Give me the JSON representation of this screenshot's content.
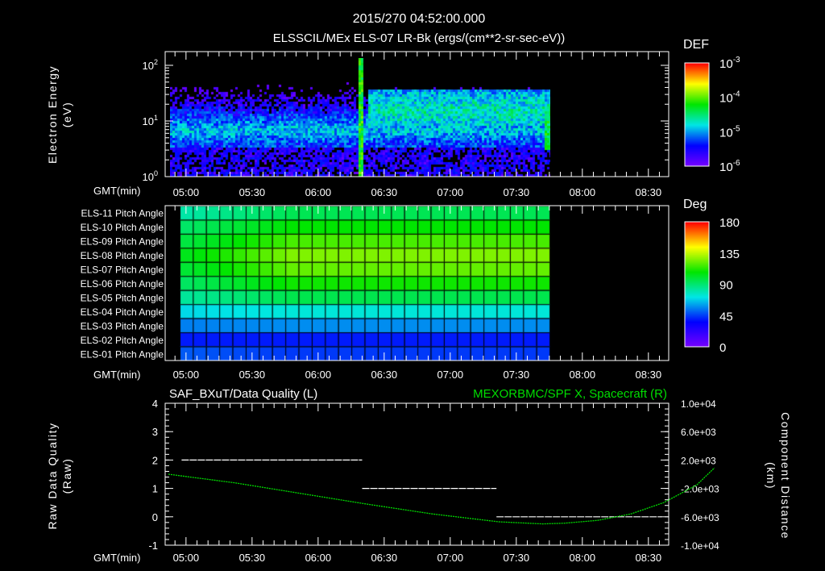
{
  "header": {
    "title": "2015/270 04:52:00.000"
  },
  "colors": {
    "background": "#000000",
    "axes": "#ffffff",
    "right_series": "#00dd00"
  },
  "chart_data": [
    {
      "type": "heatmap",
      "title": "ELSSCIL/MEx ELS-07 LR-Bk  (ergs/(cm**2-sr-sec-eV))",
      "ylabel": "Electron Energy",
      "ylabel_units": "(eV)",
      "xlabel": "GMT(min)",
      "x_ticks": [
        "05:00",
        "05:30",
        "06:00",
        "06:30",
        "07:00",
        "07:30",
        "08:00",
        "08:30"
      ],
      "y_scale": "log",
      "ylim": [
        1,
        178
      ],
      "y_ticks": [
        {
          "base": "10",
          "exp": "0",
          "value": 1
        },
        {
          "base": "10",
          "exp": "1",
          "value": 10
        },
        {
          "base": "10",
          "exp": "2",
          "value": 100
        }
      ],
      "data_time_range": [
        "04:57",
        "07:50"
      ],
      "features": [
        {
          "desc": "core band",
          "energy_eV": [
            4,
            13
          ],
          "level": "1e-5"
        },
        {
          "desc": "burst",
          "time": "06:19",
          "energy_eV": [
            3,
            150
          ],
          "level": "1e-4"
        },
        {
          "desc": "enhanced band",
          "time": [
            "06:22",
            "07:48"
          ],
          "energy_eV": [
            10,
            40
          ],
          "level": "3e-5"
        }
      ],
      "colorbar": {
        "label": "DEF",
        "scale": "log",
        "range": [
          1e-06,
          0.001
        ],
        "ticks": [
          {
            "base": "10",
            "exp": "-3"
          },
          {
            "base": "10",
            "exp": "-4"
          },
          {
            "base": "10",
            "exp": "-5"
          },
          {
            "base": "10",
            "exp": "-6"
          }
        ]
      }
    },
    {
      "type": "heatmap",
      "xlabel": "GMT(min)",
      "x_ticks": [
        "05:00",
        "05:30",
        "06:00",
        "06:30",
        "07:00",
        "07:30",
        "08:00",
        "08:30"
      ],
      "data_time_range": [
        "04:57",
        "07:51"
      ],
      "bin_minutes": 6,
      "rows": [
        {
          "label": "ELS-11 Pitch Angle",
          "start": 82,
          "end": 95
        },
        {
          "label": "ELS-10 Pitch Angle",
          "start": 92,
          "end": 108
        },
        {
          "label": "ELS-09 Pitch Angle",
          "start": 98,
          "end": 118
        },
        {
          "label": "ELS-08 Pitch Angle",
          "start": 104,
          "end": 126
        },
        {
          "label": "ELS-07 Pitch Angle",
          "start": 100,
          "end": 122
        },
        {
          "label": "ELS-06 Pitch Angle",
          "start": 93,
          "end": 110
        },
        {
          "label": "ELS-05 Pitch Angle",
          "start": 84,
          "end": 96
        },
        {
          "label": "ELS-04 Pitch Angle",
          "start": 70,
          "end": 74
        },
        {
          "label": "ELS-03 Pitch Angle",
          "start": 56,
          "end": 58
        },
        {
          "label": "ELS-02 Pitch Angle",
          "start": 40,
          "end": 40
        },
        {
          "label": "ELS-01 Pitch Angle",
          "start": 50,
          "end": 45
        }
      ],
      "colorbar": {
        "label": "Deg",
        "range": [
          0,
          180
        ],
        "ticks": [
          "180",
          "135",
          "90",
          "45",
          "0"
        ]
      }
    },
    {
      "type": "line",
      "title_left": "SAF_BXuT/Data Quality (L)",
      "title_right": "MEXORBMC/SPF X, Spacecraft (R)",
      "ylabel_left": "Raw Data Quality",
      "ylabel_left_units": "(Raw)",
      "ylabel_right": "Component Distance",
      "ylabel_right_units": "(km)",
      "xlabel": "GMT(min)",
      "x_ticks": [
        "05:00",
        "05:30",
        "06:00",
        "06:30",
        "07:00",
        "07:30",
        "08:00",
        "08:30"
      ],
      "ylim_left": [
        -1,
        4
      ],
      "y_ticks_left": [
        "4",
        "3",
        "2",
        "1",
        "0",
        "-1"
      ],
      "ylim_right": [
        -10000,
        10000
      ],
      "y_ticks_right": [
        "1.0e+04",
        "6.0e+03",
        "2.0e+03",
        "-2.0e+03",
        "-6.0e+03",
        "-1.0e+04"
      ],
      "series": [
        {
          "name": "Data Quality",
          "axis": "left",
          "color": "#ffffff",
          "style": "dashed",
          "segments": [
            {
              "from": "04:58",
              "to": "06:20",
              "value": 2
            },
            {
              "from": "06:20",
              "to": "07:21",
              "value": 1
            },
            {
              "from": "07:21",
              "to": "08:36",
              "value": 0
            }
          ]
        },
        {
          "name": "SPF X",
          "axis": "right",
          "color": "#00dd00",
          "x_min_since_0452": [
            0,
            30,
            60,
            90,
            120,
            150,
            170,
            180,
            195,
            210,
            225,
            240,
            248
          ],
          "y_km": [
            0,
            -1200,
            -2700,
            -4200,
            -5600,
            -6700,
            -7000,
            -6900,
            -6500,
            -5600,
            -4000,
            -1500,
            900
          ]
        }
      ]
    }
  ]
}
